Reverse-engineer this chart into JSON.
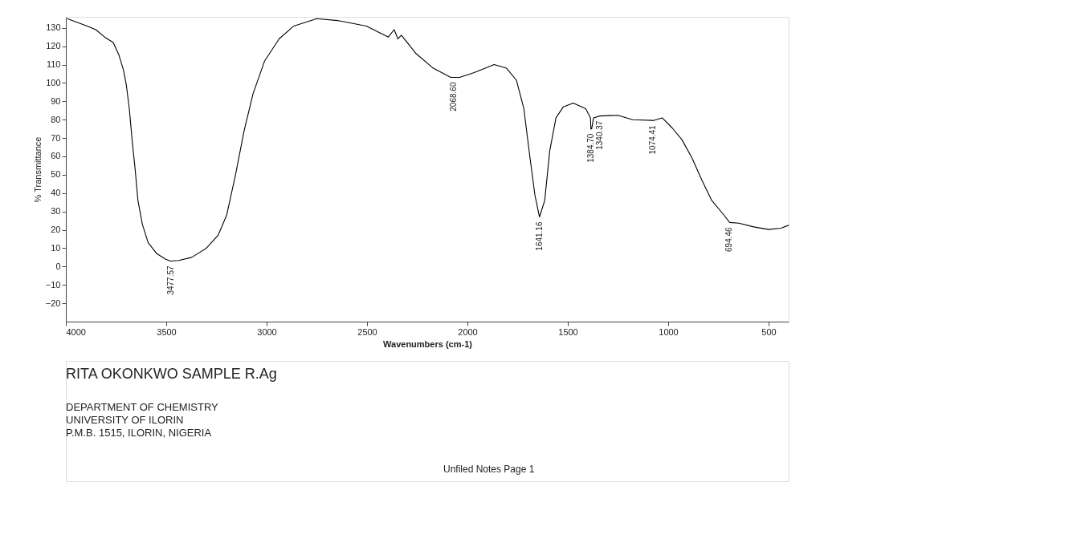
{
  "chart_data": {
    "type": "line",
    "xlabel": "Wavenumbers (cm-1)",
    "ylabel": "% Transmittance",
    "x": [
      3993,
      3894,
      3851,
      3807,
      3764,
      3735,
      3713,
      3699,
      3684,
      3670,
      3655,
      3641,
      3619,
      3590,
      3547,
      3503,
      3478,
      3438,
      3373,
      3300,
      3242,
      3199,
      3155,
      3112,
      3068,
      3010,
      2938,
      2865,
      2750,
      2648,
      2503,
      2394,
      2365,
      2346,
      2329,
      2256,
      2170,
      2083,
      2069,
      2039,
      1966,
      1867,
      1805,
      1756,
      1719,
      1688,
      1664,
      1641,
      1615,
      1590,
      1559,
      1522,
      1473,
      1411,
      1387,
      1385,
      1381,
      1372,
      1340,
      1251,
      1177,
      1079,
      1074,
      1030,
      980,
      931,
      881,
      832,
      783,
      722,
      694,
      648,
      574,
      500,
      438,
      400
    ],
    "series": [
      {
        "color": "#000000",
        "values": [
          135,
          131,
          129,
          125,
          122,
          115,
          107,
          99,
          86,
          69,
          53,
          36,
          23,
          13,
          7,
          4,
          3,
          3.3,
          5,
          10,
          17,
          28,
          50,
          74,
          94,
          112,
          124,
          131,
          135,
          134,
          131,
          125,
          129,
          124,
          126,
          116,
          108,
          103,
          103,
          103,
          105.6,
          110,
          108,
          101.5,
          86,
          59,
          39,
          27,
          36,
          63,
          81,
          87,
          89,
          86,
          81,
          75,
          75,
          81,
          82,
          82.4,
          80,
          79.6,
          79.5,
          81,
          75.5,
          69,
          59,
          47,
          36,
          28,
          24,
          23.6,
          21.6,
          20.2,
          20.9,
          22.5
        ]
      }
    ],
    "xlim": [
      4000,
      400
    ],
    "xticks": [
      4000,
      3500,
      3000,
      2500,
      2000,
      1500,
      1000,
      500
    ],
    "ylim": [
      -30,
      136
    ],
    "yticks": [
      -20,
      -10,
      0,
      10,
      20,
      30,
      40,
      50,
      60,
      70,
      80,
      90,
      100,
      110,
      120,
      130
    ],
    "grid": false,
    "marker": "none",
    "line_style": "solid",
    "annotations": [
      {
        "text": "3477.57",
        "x": 3477.57,
        "y": 3
      },
      {
        "text": "2068.60",
        "x": 2068.6,
        "y": 103
      },
      {
        "text": "1641.16",
        "x": 1641.16,
        "y": 27
      },
      {
        "text": "1384.70",
        "x": 1384.7,
        "y": 75
      },
      {
        "text": "1340.37",
        "x": 1340.37,
        "y": 82
      },
      {
        "text": "1074.41",
        "x": 1074.41,
        "y": 79.5
      },
      {
        "text": "694.46",
        "x": 694.46,
        "y": 24
      },
      "RITA OKONKWO SAMPLE R.Ag",
      "DEPARTMENT OF CHEMISTRY",
      "UNIVERSITY OF ILORIN",
      "P.M.B. 1515, ILORIN, NIGERIA",
      "Unfiled Notes Page 1"
    ]
  }
}
